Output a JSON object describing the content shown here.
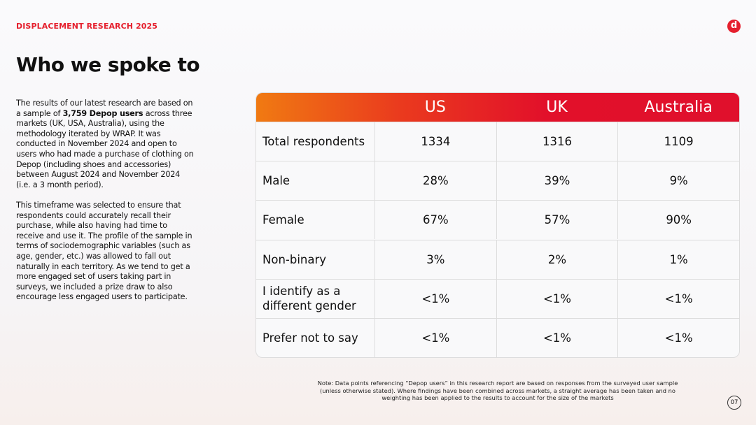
{
  "header": {
    "label": "DISPLACEMENT RESEARCH 2025",
    "logo": "d"
  },
  "title": "Who we spoke to",
  "body": {
    "paragraph1": {
      "before": "The results of our latest research are based on a sample of ",
      "bold": "3,759 Depop users",
      "after": " across three markets (UK, USA, Australia), using the methodology iterated by WRAP. It was conducted in November 2024 and open to users who had made a purchase of clothing on Depop (including shoes and accessories) between August 2024 and November 2024 (i.e. a 3 month period)."
    },
    "paragraph2": "This timeframe was selected to ensure that respondents could accurately recall their purchase, while also having had time to receive and use it. The profile of the sample in terms of sociodemographic variables (such as age, gender, etc.) was allowed to fall out naturally in each territory. As we tend to get a more engaged set of users taking part in surveys, we included a prize draw to also encourage less engaged users to participate."
  },
  "table": {
    "columns": [
      "US",
      "UK",
      "Australia"
    ],
    "rows": [
      [
        "Total respondents",
        "1334",
        "1316",
        "1109"
      ],
      [
        "Male",
        "28%",
        "39%",
        "9%"
      ],
      [
        "Female",
        "67%",
        "57%",
        "90%"
      ],
      [
        "Non-binary",
        "3%",
        "2%",
        "1%"
      ],
      [
        "I identify as a different gender",
        "<1%",
        "<1%",
        "<1%"
      ],
      [
        "Prefer not to say",
        "<1%",
        "<1%",
        "<1%"
      ]
    ]
  },
  "note": "Note: Data points referencing “Depop users” in this research report are based on responses from the surveyed user sample (unless otherwise stated). Where findings have been combined across markets, a straight average has been taken and no weighting has been applied to the results to account for the size of the markets",
  "page_number": "07"
}
